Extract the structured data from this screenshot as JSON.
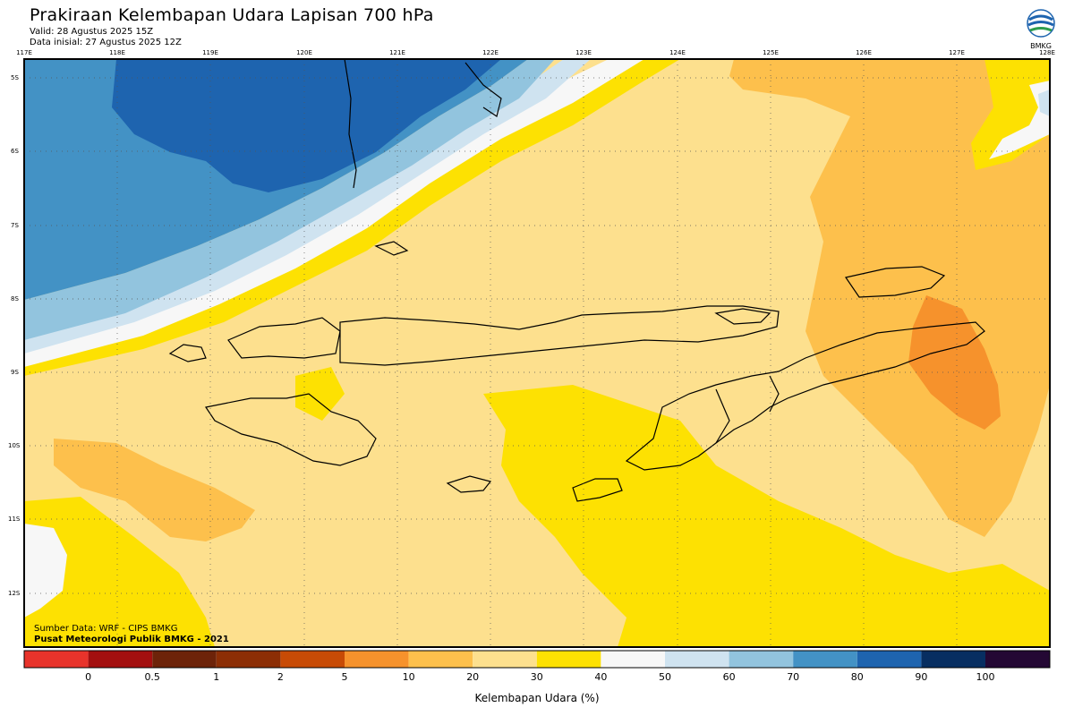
{
  "header": {
    "title": "Prakiraan Kelembapan Udara Lapisan 700 hPa",
    "valid": "Valid: 28 Agustus 2025 15Z",
    "initial": "Data inisial: 27 Agustus 2025 12Z"
  },
  "logo": {
    "label": "BMKG",
    "icon": "bmkg-logo-icon"
  },
  "map": {
    "lon_labels": [
      "117E",
      "118E",
      "119E",
      "120E",
      "121E",
      "122E",
      "123E",
      "124E",
      "125E",
      "126E",
      "127E",
      "128E"
    ],
    "lat_labels": [
      "5S",
      "6S",
      "7S",
      "8S",
      "9S",
      "10S",
      "11S",
      "12S"
    ],
    "grid": true
  },
  "credits": {
    "source": "Sumber Data: WRF - CIPS BMKG",
    "center": "Pusat Meteorologi Publik BMKG - 2021"
  },
  "legend": {
    "title": "Kelembapan Udara (%)",
    "ticks": [
      "0",
      "0.5",
      "1",
      "2",
      "5",
      "10",
      "20",
      "30",
      "40",
      "50",
      "60",
      "70",
      "80",
      "90",
      "100"
    ],
    "colors": [
      "#e8332b",
      "#a30f0f",
      "#6d2309",
      "#8c2e05",
      "#c84b06",
      "#f6922c",
      "#fdc04c",
      "#fde08e",
      "#fde102",
      "#f7f7f7",
      "#cfe3f0",
      "#92c4de",
      "#4392c5",
      "#1e64af",
      "#072e61",
      "#240834"
    ]
  },
  "colors": {
    "dry_orange": "#fdc04c",
    "darker_orange": "#f6922c",
    "pale": "#fde08e",
    "yellow": "#fde102",
    "white_band": "#f7f7f7",
    "blue1": "#cfe3f0",
    "blue2": "#92c4de",
    "blue3": "#4392c5",
    "blue4": "#1e64af"
  }
}
